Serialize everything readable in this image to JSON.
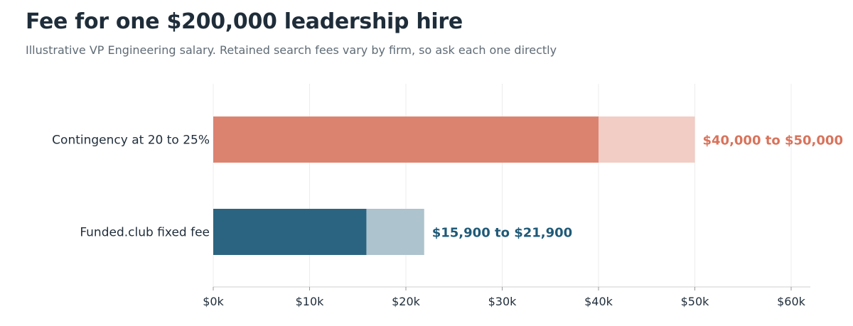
{
  "title": "Fee for one $200,000 leadership hire",
  "subtitle": "Illustrative VP Engineering salary. Retained search fees vary by firm, so ask each one directly",
  "chart_data": {
    "type": "bar",
    "orientation": "horizontal",
    "categories": [
      "Contingency at 20 to 25%",
      "Funded.club fixed fee"
    ],
    "series": [
      {
        "low": 40000,
        "high": 50000,
        "label": "$40,000 to $50,000",
        "color": "#dc8370",
        "range_color": "#f2cdc5",
        "label_color": "#d9735b"
      },
      {
        "low": 15900,
        "high": 21900,
        "label": "$15,900 to $21,900",
        "color": "#2b6480",
        "range_color": "#adc3ce",
        "label_color": "#1f5a78"
      }
    ],
    "x_ticks": [
      0,
      10000,
      20000,
      30000,
      40000,
      50000,
      60000
    ],
    "x_tick_labels": [
      "$0k",
      "$10k",
      "$20k",
      "$30k",
      "$40k",
      "$50k",
      "$60k"
    ],
    "xlim": [
      0,
      62000
    ],
    "grid": true
  }
}
